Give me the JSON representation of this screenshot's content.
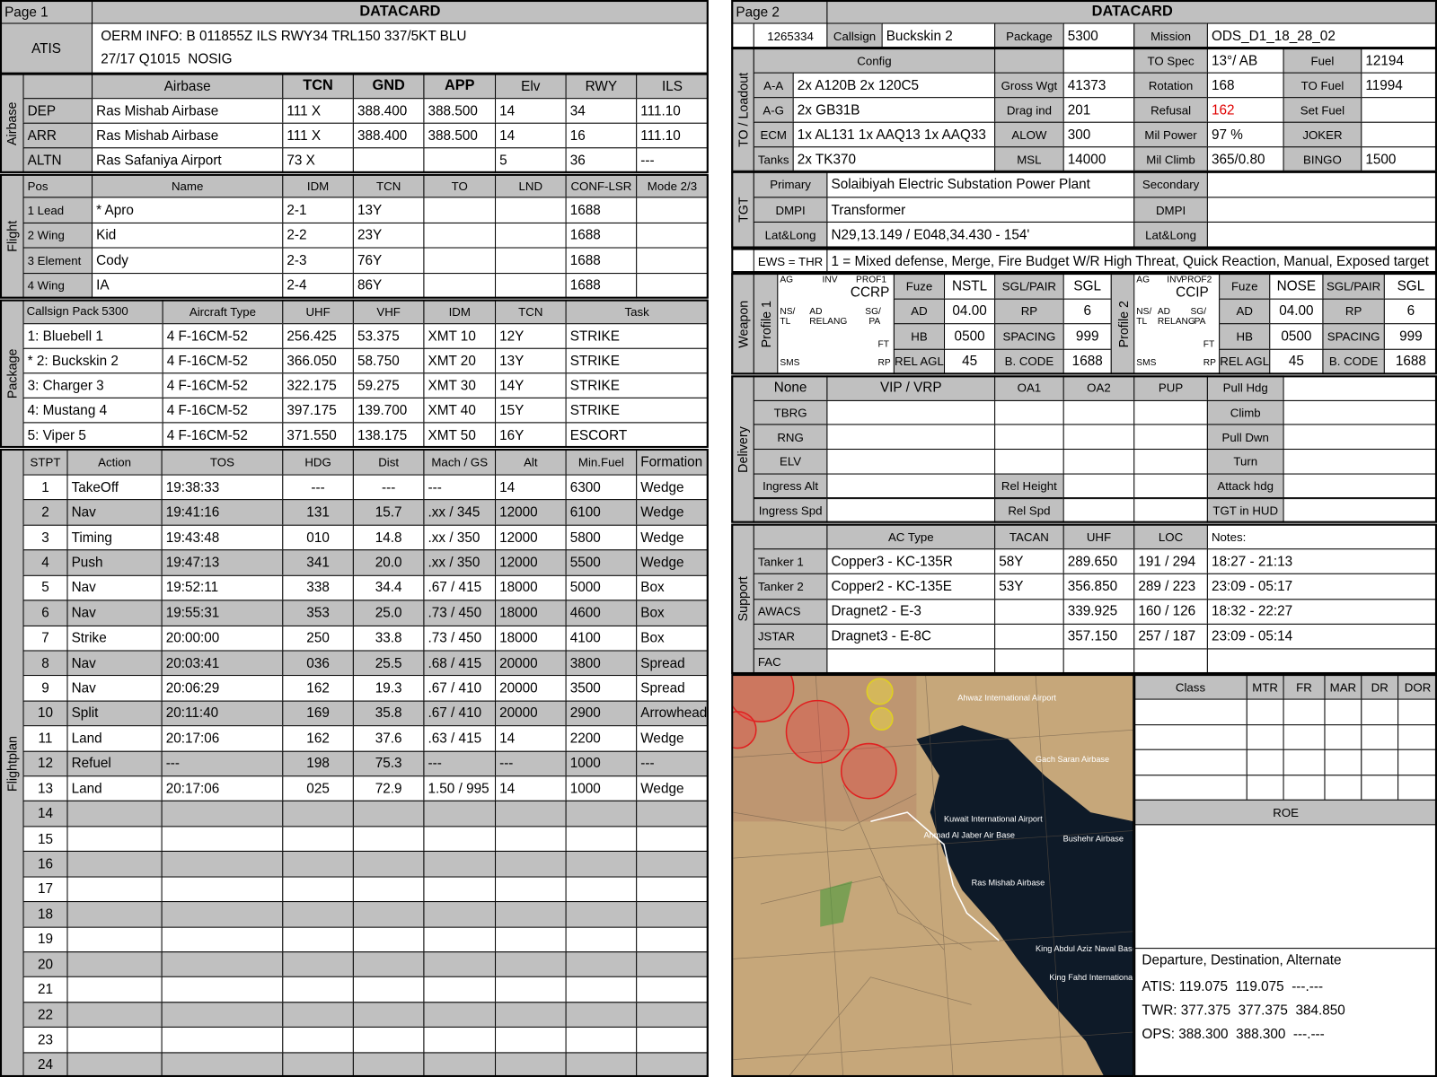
{
  "left": {
    "page": "Page 1",
    "title": "DATACARD",
    "atis": {
      "label": "ATIS",
      "lines": [
        "OERM INFO: B 011855Z ILS RWY34 TRL150 337/5KT BLU",
        "27/17 Q1015  NOSIG"
      ]
    },
    "airbase": {
      "section": "Airbase",
      "header": [
        null,
        "Airbase",
        "TCN",
        "GND",
        "APP",
        "Elv",
        "RWY",
        "ILS"
      ],
      "rows": [
        [
          "DEP",
          "Ras Mishab Airbase",
          "111 X",
          "388.400",
          "388.500",
          "14",
          "34",
          "111.10"
        ],
        [
          "ARR",
          "Ras Mishab Airbase",
          "111 X",
          "388.400",
          "388.500",
          "14",
          "16",
          "111.10"
        ],
        [
          "ALTN",
          "Ras Safaniya Airport",
          "73 X",
          null,
          null,
          "5",
          "36",
          "---"
        ]
      ]
    },
    "flight": {
      "section": "Flight",
      "header": [
        "Pos",
        "Name",
        "IDM",
        "TCN",
        "TO",
        "LND",
        "CONF-LSR",
        "Mode 2/3"
      ],
      "rows": [
        [
          "1 Lead",
          "* Apro",
          "2-1",
          "13Y",
          null,
          null,
          "1688",
          null
        ],
        [
          "2 Wing",
          "Kid",
          "2-2",
          "23Y",
          null,
          null,
          "1688",
          null
        ],
        [
          "3 Element",
          "Cody",
          "2-3",
          "76Y",
          null,
          null,
          "1688",
          null
        ],
        [
          "4 Wing",
          "IA",
          "2-4",
          "86Y",
          null,
          null,
          "1688",
          null
        ]
      ]
    },
    "package": {
      "section": "Package",
      "callsign_pack": "Callsign Pack",
      "pack_number": "5300",
      "header": [
        "Aircraft Type",
        "UHF",
        "VHF",
        "IDM",
        "TCN",
        "Task"
      ],
      "rows": [
        [
          "1: Bluebell 1",
          "4 F-16CM-52",
          "256.425",
          "53.375",
          "XMT 10",
          "12Y",
          "STRIKE"
        ],
        [
          "* 2: Buckskin 2",
          "4 F-16CM-52",
          "366.050",
          "58.750",
          "XMT 20",
          "13Y",
          "STRIKE"
        ],
        [
          "3: Charger 3",
          "4 F-16CM-52",
          "322.175",
          "59.275",
          "XMT 30",
          "14Y",
          "STRIKE"
        ],
        [
          "4: Mustang 4",
          "4 F-16CM-52",
          "397.175",
          "139.700",
          "XMT 40",
          "15Y",
          "STRIKE"
        ],
        [
          "5: Viper 5",
          "4 F-16CM-52",
          "371.550",
          "138.175",
          "XMT 50",
          "16Y",
          "ESCORT"
        ]
      ]
    },
    "flightplan": {
      "section": "Flightplan",
      "header": [
        "STPT",
        "Action",
        "TOS",
        "HDG",
        "Dist",
        "Mach / GS",
        "Alt",
        "Min.Fuel",
        "Formation"
      ],
      "rows": [
        [
          "1",
          "TakeOff",
          "19:38:33",
          "---",
          "---",
          "---",
          "14",
          "6300",
          "Wedge"
        ],
        [
          "2",
          "Nav",
          "19:41:16",
          "131",
          "15.7",
          ".xx / 345",
          "12000",
          "6100",
          "Wedge"
        ],
        [
          "3",
          "Timing",
          "19:43:48",
          "010",
          "14.8",
          ".xx / 350",
          "12000",
          "5800",
          "Wedge"
        ],
        [
          "4",
          "Push",
          "19:47:13",
          "341",
          "20.0",
          ".xx / 350",
          "12000",
          "5500",
          "Wedge"
        ],
        [
          "5",
          "Nav",
          "19:52:11",
          "338",
          "34.4",
          ".67 / 415",
          "18000",
          "5000",
          "Box"
        ],
        [
          "6",
          "Nav",
          "19:55:31",
          "353",
          "25.0",
          ".73 / 450",
          "18000",
          "4600",
          "Box"
        ],
        [
          "7",
          "Strike",
          "20:00:00",
          "250",
          "33.8",
          ".73 / 450",
          "18000",
          "4100",
          "Box"
        ],
        [
          "8",
          "Nav",
          "20:03:41",
          "036",
          "25.5",
          ".68 / 415",
          "20000",
          "3800",
          "Spread"
        ],
        [
          "9",
          "Nav",
          "20:06:29",
          "162",
          "19.3",
          ".67 / 410",
          "20000",
          "3500",
          "Spread"
        ],
        [
          "10",
          "Split",
          "20:11:40",
          "169",
          "35.8",
          ".67 / 410",
          "20000",
          "2900",
          "Arrowhead"
        ],
        [
          "11",
          "Land",
          "20:17:06",
          "162",
          "37.6",
          ".63 / 415",
          "14",
          "2200",
          "Wedge"
        ],
        [
          "12",
          "Refuel",
          "---",
          "198",
          "75.3",
          "---",
          "---",
          "1000",
          "---"
        ],
        [
          "13",
          "Land",
          "20:17:06",
          "025",
          "72.9",
          "1.50 / 995",
          "14",
          "1000",
          "Wedge"
        ],
        [
          "14"
        ],
        [
          "15"
        ],
        [
          "16"
        ],
        [
          "17"
        ],
        [
          "18"
        ],
        [
          "19"
        ],
        [
          "20"
        ],
        [
          "21"
        ],
        [
          "22"
        ],
        [
          "23"
        ],
        [
          "24"
        ]
      ]
    }
  },
  "right": {
    "page": "Page 2",
    "title": "DATACARD",
    "ident": [
      "1265334",
      "Callsign",
      "Buckskin 2",
      "Package",
      "5300",
      "Mission",
      "ODS_D1_18_28_02"
    ],
    "loadout": {
      "section": "TO / Loadout",
      "config": [
        "Config",
        null,
        null,
        "TO Spec",
        "13°/ AB",
        "Fuel",
        "12194"
      ],
      "rows": [
        [
          "A-A",
          "2x A120B 2x 120C5",
          "Gross Wgt",
          "41373",
          "Rotation",
          "168",
          "TO Fuel",
          "11994"
        ],
        [
          "A-G",
          "2x GB31B",
          "Drag ind",
          "201",
          "Refusal",
          "162",
          "Set Fuel",
          null
        ],
        [
          "ECM",
          "1x AL131 1x AAQ13 1x AAQ33",
          "ALOW",
          "300",
          "Mil Power",
          "97 %",
          "JOKER",
          null
        ],
        [
          "Tanks",
          "2x TK370",
          "MSL",
          "14000",
          "Mil Climb",
          "365/0.80",
          "BINGO",
          "1500"
        ]
      ]
    },
    "tgt": {
      "section": "TGT",
      "rows": [
        [
          "Primary",
          "Solaibiyah Electric Substation Power Plant",
          "Secondary",
          null
        ],
        [
          "DMPI",
          "Transformer",
          "DMPI",
          null
        ],
        [
          "Lat&Long",
          "N29,13.149 / E048,34.430 - 154'",
          "Lat&Long",
          null
        ]
      ]
    },
    "ews": {
      "label": "EWS = THR",
      "text": "1 = Mixed defense, Merge, Fire Budget W/R High Threat, Quick Reaction, Manual, Exposed target"
    },
    "weapon": {
      "section": "Weapon",
      "profiles": [
        {
          "label": "Profile 1",
          "box": {
            "ag": "AG",
            "inv": "INV",
            "prof": "PROF1",
            "mode": "CCRP",
            "ns": "NS/",
            "tl": "TL",
            "ad": "AD",
            "relang": "RELANG",
            "sg": "SG/",
            "pa": "PA",
            "ft": "FT",
            "sms": "SMS",
            "rp": "RP"
          },
          "rows": [
            [
              "Fuze",
              "NSTL",
              "SGL/PAIR",
              "SGL"
            ],
            [
              "AD",
              "04.00",
              "RP",
              "6"
            ],
            [
              "HB",
              "0500",
              "SPACING",
              "999"
            ],
            [
              "REL AGL",
              "45",
              "B. CODE",
              "1688"
            ]
          ]
        },
        {
          "label": "Profile 2",
          "box": {
            "ag": "AG",
            "inv": "INV",
            "prof": "PROF2",
            "mode": "CCIP",
            "ns": "NS/",
            "tl": "TL",
            "ad": "AD",
            "relang": "RELANG",
            "sg": "SG/",
            "pa": "PA",
            "ft": "FT",
            "sms": "SMS",
            "rp": "RP"
          },
          "rows": [
            [
              "Fuze",
              "NOSE",
              "SGL/PAIR",
              "SGL"
            ],
            [
              "AD",
              "04.00",
              "RP",
              "6"
            ],
            [
              "HB",
              "0500",
              "SPACING",
              "999"
            ],
            [
              "REL AGL",
              "45",
              "B. CODE",
              "1688"
            ]
          ]
        }
      ]
    },
    "delivery": {
      "section": "Delivery",
      "rows": [
        [
          "None",
          "VIP / VRP",
          "OA1",
          "OA2",
          "PUP",
          "Pull Hdg",
          null
        ],
        [
          "TBRG",
          null,
          null,
          null,
          null,
          "Climb",
          null
        ],
        [
          "RNG",
          null,
          null,
          null,
          null,
          "Pull Dwn",
          null
        ],
        [
          "ELV",
          null,
          null,
          null,
          null,
          "Turn",
          null
        ],
        [
          "Ingress Alt",
          null,
          "Rel Height",
          null,
          null,
          "Attack hdg",
          null
        ],
        [
          "Ingress Spd",
          null,
          "Rel Spd",
          null,
          null,
          "TGT in HUD",
          null
        ]
      ]
    },
    "support": {
      "section": "Support",
      "rows": [
        [
          null,
          "AC Type",
          "TACAN",
          "UHF",
          "LOC",
          "Notes:"
        ],
        [
          "Tanker 1",
          "Copper3 - KC-135R",
          "58Y",
          "289.650",
          "191 / 294",
          "18:27 - 21:13"
        ],
        [
          "Tanker 2",
          "Copper2 - KC-135E",
          "53Y",
          "356.850",
          "289 / 223",
          "23:09 - 05:17"
        ],
        [
          "AWACS",
          "Dragnet2 - E-3",
          null,
          "339.925",
          "160 / 126",
          "18:32 - 22:27"
        ],
        [
          "JSTAR",
          "Dragnet3 - E-8C",
          null,
          "357.150",
          "257 / 187",
          "23:09 - 05:14"
        ],
        [
          "FAC",
          null,
          null,
          null,
          null,
          null
        ]
      ]
    },
    "map": {
      "labels": [
        "Ahwaz International Airport",
        "Gach Saran Airbase",
        "Kuwait International Airport",
        "Ahmad Al Jaber Air Base",
        "Bushehr Airbase",
        "Ras Mishab Airbase",
        "King Abdul Aziz Naval Base",
        "King Fahd International Airport"
      ]
    },
    "class_table": {
      "header": [
        "Class",
        "MTR",
        "FR",
        "MAR",
        "DR",
        "DOR"
      ]
    },
    "roe": "ROE",
    "comms": {
      "title": "Departure, Destination, Alternate",
      "lines": [
        "ATIS: 119.075  119.075  ---.---",
        "TWR: 377.375  377.375  384.850",
        "OPS: 388.300  388.300  ---.---"
      ]
    }
  }
}
